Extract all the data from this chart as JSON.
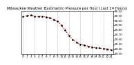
{
  "hours": [
    0,
    1,
    2,
    3,
    4,
    5,
    6,
    7,
    8,
    9,
    10,
    11,
    12,
    13,
    14,
    15,
    16,
    17,
    18,
    19,
    20,
    21,
    22,
    23
  ],
  "pressure": [
    30.08,
    30.1,
    30.11,
    30.09,
    30.08,
    30.09,
    30.07,
    30.05,
    30.02,
    29.98,
    29.9,
    29.8,
    29.68,
    29.6,
    29.54,
    29.5,
    29.48,
    29.46,
    29.44,
    29.43,
    29.42,
    29.41,
    29.4,
    29.38
  ],
  "ylim": [
    29.3,
    30.2
  ],
  "yticks": [
    29.3,
    29.4,
    29.5,
    29.6,
    29.7,
    29.8,
    29.9,
    30.0,
    30.1,
    30.2
  ],
  "title": "Milwaukee Weather Barometric Pressure per Hour (Last 24 Hours)",
  "bg_color": "#ffffff",
  "line_color": "#cc0000",
  "point_color": "#000000",
  "grid_color": "#999999",
  "title_color": "#000000",
  "tick_label_color": "#000000",
  "title_fontsize": 3.8,
  "tick_fontsize": 3.0
}
